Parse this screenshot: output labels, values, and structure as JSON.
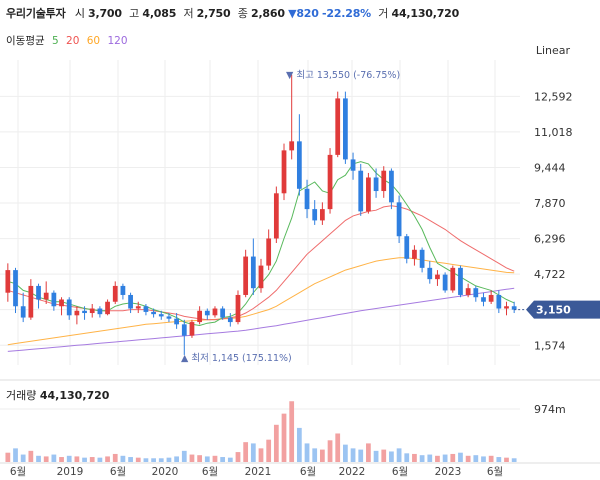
{
  "header": {
    "name": "우리기술투자",
    "open_label": "시",
    "open": "3,700",
    "high_label": "고",
    "high": "4,085",
    "low_label": "저",
    "low": "2,750",
    "close_label": "종",
    "close": "2,860",
    "change": "▼820",
    "change_pct": "-22.28%",
    "volume_label": "거",
    "volume": "44,130,720"
  },
  "moving_average": {
    "label": "이동평균",
    "periods": [
      {
        "value": "5",
        "color": "#4caf50"
      },
      {
        "value": "20",
        "color": "#ef5350"
      },
      {
        "value": "60",
        "color": "#ffa726"
      },
      {
        "value": "120",
        "color": "#9c6ade"
      }
    ]
  },
  "scale_label": "Linear",
  "colors": {
    "up": "#e03a3a",
    "down": "#2f7fe0",
    "vol_up": "#f2a1a1",
    "vol_down": "#9cc4f2",
    "grid": "#eeeeee",
    "current_bg": "#3b5998"
  },
  "annotations": {
    "max_text": "▼ 최고 13,550 (-76.75%)",
    "min_text": "▲ 최저 1,145 (175.11%)"
  },
  "current_price": "3,150",
  "volume_panel": {
    "label": "거래량",
    "value": "44,130,720",
    "axis_label": "974m"
  },
  "chart_data": {
    "type": "candlestick",
    "price_ticks": [
      1574,
      3150,
      4722,
      6296,
      7870,
      9444,
      11018,
      12592
    ],
    "price_tick_labels": [
      "1,574",
      "4,722",
      "6,296",
      "7,870",
      "9,444",
      "11,018",
      "12,592"
    ],
    "ylim": [
      700,
      14200
    ],
    "x_tick_labels": [
      "6월",
      "2019",
      "6월",
      "2020",
      "6월",
      "2021",
      "6월",
      "2022",
      "6월",
      "2023",
      "6월"
    ],
    "candles": [
      [
        3900,
        5200,
        3500,
        4900
      ],
      [
        4900,
        5000,
        3000,
        3300
      ],
      [
        3300,
        3900,
        2600,
        2800
      ],
      [
        2800,
        4500,
        2700,
        4200
      ],
      [
        4200,
        4300,
        3200,
        3600
      ],
      [
        3600,
        4400,
        3400,
        3900
      ],
      [
        3900,
        4000,
        3100,
        3300
      ],
      [
        3300,
        3700,
        2900,
        3600
      ],
      [
        3600,
        3700,
        2700,
        2900
      ],
      [
        2900,
        3300,
        2500,
        3100
      ],
      [
        3100,
        3300,
        2700,
        3000
      ],
      [
        3000,
        3400,
        2800,
        3200
      ],
      [
        3200,
        3300,
        2800,
        2950
      ],
      [
        2950,
        3600,
        2900,
        3500
      ],
      [
        3500,
        4400,
        3400,
        4200
      ],
      [
        4200,
        4300,
        3600,
        3800
      ],
      [
        3800,
        3900,
        3000,
        3200
      ],
      [
        3200,
        3500,
        3000,
        3300
      ],
      [
        3300,
        3400,
        2900,
        3050
      ],
      [
        3050,
        3200,
        2800,
        2950
      ],
      [
        2950,
        3100,
        2700,
        2850
      ],
      [
        2850,
        3000,
        2600,
        2750
      ],
      [
        2750,
        3000,
        2300,
        2500
      ],
      [
        2500,
        2700,
        1145,
        2000
      ],
      [
        2000,
        2700,
        1900,
        2600
      ],
      [
        2600,
        3300,
        2500,
        3100
      ],
      [
        3100,
        3200,
        2700,
        2900
      ],
      [
        2900,
        3300,
        2800,
        3200
      ],
      [
        3200,
        3300,
        2700,
        2800
      ],
      [
        2800,
        3000,
        2400,
        2600
      ],
      [
        2600,
        4000,
        2500,
        3800
      ],
      [
        3800,
        5800,
        3700,
        5500
      ],
      [
        5500,
        6300,
        3800,
        4100
      ],
      [
        4100,
        5400,
        3900,
        5100
      ],
      [
        5100,
        6700,
        4900,
        6300
      ],
      [
        6300,
        8600,
        6100,
        8300
      ],
      [
        8300,
        10500,
        8000,
        10200
      ],
      [
        10200,
        13550,
        9800,
        10600
      ],
      [
        10600,
        11800,
        8200,
        8500
      ],
      [
        8500,
        8900,
        7200,
        7600
      ],
      [
        7600,
        8000,
        6900,
        7100
      ],
      [
        7100,
        7900,
        6900,
        7600
      ],
      [
        7600,
        10300,
        7400,
        10000
      ],
      [
        10000,
        12800,
        9900,
        12500
      ],
      [
        12500,
        12800,
        9600,
        9800
      ],
      [
        9800,
        10100,
        8900,
        9300
      ],
      [
        9300,
        9600,
        7300,
        7500
      ],
      [
        7500,
        9200,
        7400,
        9000
      ],
      [
        9000,
        9400,
        8100,
        8400
      ],
      [
        8400,
        9500,
        8100,
        9300
      ],
      [
        9300,
        9400,
        7600,
        7900
      ],
      [
        7900,
        8200,
        6100,
        6400
      ],
      [
        6400,
        6500,
        5200,
        5400
      ],
      [
        5400,
        6000,
        5100,
        5800
      ],
      [
        5800,
        5900,
        4800,
        5000
      ],
      [
        5000,
        5300,
        4300,
        4500
      ],
      [
        4500,
        4900,
        4200,
        4700
      ],
      [
        4700,
        4800,
        3900,
        4000
      ],
      [
        4000,
        5100,
        3900,
        5000
      ],
      [
        5000,
        5100,
        3700,
        3800
      ],
      [
        3800,
        4300,
        3700,
        4100
      ],
      [
        4100,
        4200,
        3500,
        3700
      ],
      [
        3700,
        3900,
        3300,
        3500
      ],
      [
        3500,
        4000,
        3400,
        3800
      ],
      [
        3800,
        4000,
        3000,
        3200
      ],
      [
        3200,
        3500,
        2900,
        3300
      ],
      [
        3300,
        3500,
        3000,
        3150
      ]
    ],
    "volumes": [
      0.15,
      0.22,
      0.12,
      0.18,
      0.1,
      0.09,
      0.12,
      0.08,
      0.1,
      0.09,
      0.07,
      0.08,
      0.07,
      0.09,
      0.13,
      0.1,
      0.08,
      0.07,
      0.06,
      0.06,
      0.06,
      0.07,
      0.09,
      0.18,
      0.12,
      0.11,
      0.09,
      0.1,
      0.08,
      0.07,
      0.16,
      0.32,
      0.3,
      0.22,
      0.36,
      0.6,
      0.78,
      0.98,
      0.55,
      0.3,
      0.22,
      0.2,
      0.35,
      0.46,
      0.28,
      0.22,
      0.2,
      0.3,
      0.18,
      0.2,
      0.17,
      0.22,
      0.14,
      0.13,
      0.11,
      0.12,
      0.1,
      0.12,
      0.13,
      0.15,
      0.1,
      0.11,
      0.09,
      0.1,
      0.08,
      0.07,
      0.06
    ],
    "ma5": [
      4400,
      4300,
      4000,
      3900,
      3700,
      3600,
      3500,
      3500,
      3400,
      3300,
      3200,
      3150,
      3100,
      3100,
      3300,
      3400,
      3450,
      3400,
      3300,
      3150,
      3050,
      2950,
      2800,
      2600,
      2500,
      2450,
      2550,
      2600,
      2800,
      2850,
      3000,
      3400,
      3900,
      4300,
      4700,
      5300,
      6300,
      7200,
      8400,
      8600,
      8800,
      8400,
      8300,
      8900,
      9100,
      9600,
      9700,
      9600,
      9200,
      8900,
      8700,
      8300,
      7800,
      7300,
      6700,
      5900,
      5200,
      5000,
      4800,
      4600,
      4400,
      4200,
      4100,
      4000,
      3800,
      3600,
      3450
    ],
    "ma20": [
      4000,
      3900,
      3800,
      3700,
      3600,
      3500,
      3400,
      3350,
      3300,
      3250,
      3200,
      3150,
      3100,
      3100,
      3100,
      3100,
      3150,
      3150,
      3150,
      3100,
      3050,
      3000,
      2950,
      2850,
      2800,
      2750,
      2700,
      2700,
      2750,
      2800,
      2850,
      3000,
      3200,
      3450,
      3700,
      4000,
      4400,
      4800,
      5200,
      5600,
      5900,
      6200,
      6500,
      6800,
      7100,
      7300,
      7400,
      7500,
      7550,
      7700,
      7750,
      7700,
      7600,
      7450,
      7300,
      7100,
      6900,
      6700,
      6450,
      6200,
      6000,
      5800,
      5600,
      5400,
      5200,
      5000,
      4850
    ],
    "ma60": [
      1600,
      1650,
      1700,
      1750,
      1800,
      1850,
      1900,
      1950,
      2000,
      2050,
      2100,
      2150,
      2200,
      2250,
      2300,
      2350,
      2400,
      2450,
      2500,
      2530,
      2560,
      2590,
      2620,
      2640,
      2660,
      2680,
      2700,
      2720,
      2740,
      2760,
      2790,
      2850,
      2950,
      3050,
      3150,
      3300,
      3500,
      3700,
      3900,
      4100,
      4300,
      4450,
      4600,
      4750,
      4900,
      5000,
      5100,
      5200,
      5300,
      5350,
      5400,
      5450,
      5450,
      5400,
      5350,
      5300,
      5250,
      5200,
      5150,
      5100,
      5050,
      5000,
      4950,
      4900,
      4850,
      4800,
      4780
    ],
    "ma120": [
      1300,
      1330,
      1360,
      1390,
      1420,
      1450,
      1480,
      1510,
      1540,
      1570,
      1600,
      1630,
      1660,
      1690,
      1720,
      1750,
      1780,
      1810,
      1840,
      1870,
      1900,
      1930,
      1960,
      1990,
      2020,
      2050,
      2080,
      2110,
      2140,
      2170,
      2200,
      2240,
      2290,
      2340,
      2390,
      2440,
      2500,
      2560,
      2620,
      2680,
      2740,
      2800,
      2860,
      2920,
      2980,
      3040,
      3100,
      3150,
      3200,
      3250,
      3300,
      3350,
      3400,
      3450,
      3500,
      3550,
      3600,
      3650,
      3700,
      3750,
      3800,
      3850,
      3900,
      3950,
      4000,
      4050,
      4100
    ]
  }
}
